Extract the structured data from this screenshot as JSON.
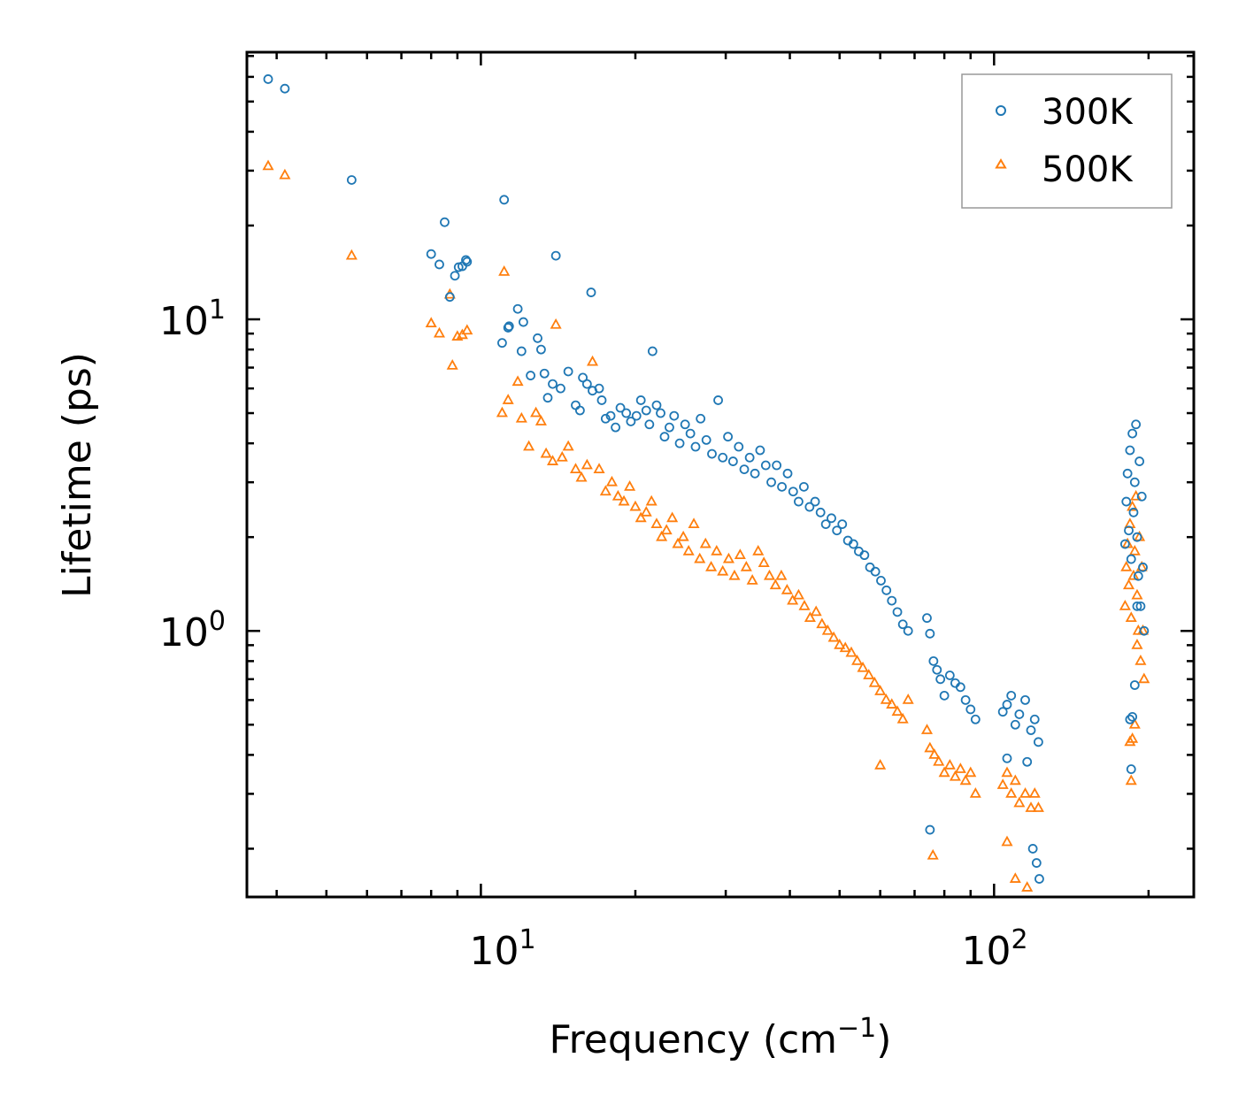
{
  "chart_data": {
    "type": "scatter",
    "xscale": "log",
    "yscale": "log",
    "xlim": [
      3.5,
      245
    ],
    "ylim": [
      0.14,
      72
    ],
    "x_major_ticks": [
      10,
      100
    ],
    "y_major_ticks": [
      1,
      10
    ],
    "x_tick_labels": [
      {
        "base": "10",
        "exp": "1"
      },
      {
        "base": "10",
        "exp": "2"
      }
    ],
    "y_tick_labels": [
      {
        "base": "10",
        "exp": "0"
      },
      {
        "base": "10",
        "exp": "1"
      }
    ],
    "xlabel": {
      "text": "Frequency (cm",
      "sup": "−1",
      "suffix": ")"
    },
    "ylabel": "Lifetime (ps)",
    "grid": false,
    "legend_position": "top-right",
    "series": [
      {
        "name": "300K",
        "marker": "circle",
        "color": "#1f77b4",
        "points": [
          [
            3.85,
            59
          ],
          [
            4.15,
            55
          ],
          [
            5.6,
            28
          ],
          [
            8.0,
            16.2
          ],
          [
            8.3,
            15
          ],
          [
            8.5,
            20.5
          ],
          [
            8.7,
            11.8
          ],
          [
            8.9,
            13.8
          ],
          [
            9.05,
            14.7
          ],
          [
            9.2,
            14.8
          ],
          [
            9.35,
            15.5
          ],
          [
            9.4,
            15.3
          ],
          [
            11.0,
            8.4
          ],
          [
            11.1,
            24.2
          ],
          [
            11.3,
            9.4
          ],
          [
            11.35,
            9.5
          ],
          [
            11.8,
            10.8
          ],
          [
            12.0,
            7.9
          ],
          [
            12.1,
            9.8
          ],
          [
            12.5,
            6.6
          ],
          [
            12.9,
            8.7
          ],
          [
            13.1,
            8.0
          ],
          [
            13.3,
            6.7
          ],
          [
            13.5,
            5.6
          ],
          [
            13.8,
            6.2
          ],
          [
            14.0,
            16.0
          ],
          [
            14.3,
            6.0
          ],
          [
            14.8,
            6.8
          ],
          [
            15.3,
            5.3
          ],
          [
            15.6,
            5.1
          ],
          [
            15.8,
            6.5
          ],
          [
            16.1,
            6.2
          ],
          [
            16.4,
            12.2
          ],
          [
            16.5,
            5.9
          ],
          [
            17.0,
            6.0
          ],
          [
            17.2,
            5.5
          ],
          [
            17.5,
            4.8
          ],
          [
            17.9,
            4.9
          ],
          [
            18.3,
            4.5
          ],
          [
            18.7,
            5.2
          ],
          [
            19.2,
            5.0
          ],
          [
            19.6,
            4.7
          ],
          [
            20.1,
            4.9
          ],
          [
            20.5,
            5.5
          ],
          [
            21.0,
            5.1
          ],
          [
            21.3,
            4.6
          ],
          [
            21.6,
            7.9
          ],
          [
            22.0,
            5.3
          ],
          [
            22.4,
            5.0
          ],
          [
            22.8,
            4.2
          ],
          [
            23.3,
            4.5
          ],
          [
            23.8,
            4.9
          ],
          [
            24.4,
            4.0
          ],
          [
            25.0,
            4.6
          ],
          [
            25.6,
            4.3
          ],
          [
            26.2,
            3.9
          ],
          [
            26.8,
            4.8
          ],
          [
            27.5,
            4.1
          ],
          [
            28.2,
            3.7
          ],
          [
            29.0,
            5.5
          ],
          [
            29.6,
            3.6
          ],
          [
            30.3,
            4.2
          ],
          [
            31.0,
            3.5
          ],
          [
            31.8,
            3.9
          ],
          [
            32.6,
            3.3
          ],
          [
            33.4,
            3.6
          ],
          [
            34.2,
            3.2
          ],
          [
            35.0,
            3.8
          ],
          [
            35.9,
            3.4
          ],
          [
            36.8,
            3.0
          ],
          [
            37.7,
            3.4
          ],
          [
            38.6,
            2.9
          ],
          [
            39.6,
            3.2
          ],
          [
            40.6,
            2.8
          ],
          [
            41.6,
            2.6
          ],
          [
            42.6,
            2.9
          ],
          [
            43.7,
            2.5
          ],
          [
            44.8,
            2.6
          ],
          [
            45.9,
            2.4
          ],
          [
            47.0,
            2.2
          ],
          [
            48.2,
            2.3
          ],
          [
            49.4,
            2.1
          ],
          [
            50.6,
            2.2
          ],
          [
            51.9,
            1.95
          ],
          [
            53.2,
            1.9
          ],
          [
            54.5,
            1.8
          ],
          [
            55.9,
            1.75
          ],
          [
            57.3,
            1.6
          ],
          [
            58.7,
            1.55
          ],
          [
            60.2,
            1.45
          ],
          [
            61.7,
            1.35
          ],
          [
            63.2,
            1.25
          ],
          [
            64.8,
            1.15
          ],
          [
            66.4,
            1.05
          ],
          [
            68.0,
            1.0
          ],
          [
            74.0,
            1.1
          ],
          [
            75.0,
            0.98
          ],
          [
            76.2,
            0.8
          ],
          [
            77.4,
            0.75
          ],
          [
            78.6,
            0.7
          ],
          [
            80.0,
            0.62
          ],
          [
            82.0,
            0.72
          ],
          [
            84.0,
            0.68
          ],
          [
            86.0,
            0.66
          ],
          [
            88.0,
            0.6
          ],
          [
            90.0,
            0.56
          ],
          [
            92.0,
            0.52
          ],
          [
            104.0,
            0.55
          ],
          [
            106.0,
            0.58
          ],
          [
            108.0,
            0.62
          ],
          [
            110.0,
            0.5
          ],
          [
            112.0,
            0.54
          ],
          [
            115.0,
            0.6
          ],
          [
            118.0,
            0.48
          ],
          [
            120.0,
            0.52
          ],
          [
            122.0,
            0.44
          ],
          [
            75.0,
            0.23
          ],
          [
            106.0,
            0.39
          ],
          [
            116.0,
            0.38
          ],
          [
            119.0,
            0.2
          ],
          [
            121.0,
            0.18
          ],
          [
            122.5,
            0.16
          ],
          [
            180.0,
            1.9
          ],
          [
            181.0,
            2.6
          ],
          [
            182.0,
            3.2
          ],
          [
            183.0,
            2.1
          ],
          [
            184.0,
            3.8
          ],
          [
            185.0,
            1.7
          ],
          [
            186.0,
            4.3
          ],
          [
            187.0,
            2.4
          ],
          [
            188.0,
            3.0
          ],
          [
            189.0,
            4.6
          ],
          [
            190.0,
            2.0
          ],
          [
            191.0,
            1.5
          ],
          [
            192.0,
            3.5
          ],
          [
            193.0,
            1.2
          ],
          [
            194.0,
            2.7
          ],
          [
            195.0,
            1.6
          ],
          [
            196.0,
            1.0
          ],
          [
            184.0,
            0.52
          ],
          [
            186.0,
            0.53
          ],
          [
            188.0,
            0.67
          ],
          [
            190.0,
            1.2
          ],
          [
            185.0,
            0.36
          ]
        ]
      },
      {
        "name": "500K",
        "marker": "triangle",
        "color": "#ff7f0e",
        "points": [
          [
            3.85,
            31
          ],
          [
            4.15,
            29
          ],
          [
            5.6,
            16
          ],
          [
            8.0,
            9.7
          ],
          [
            8.3,
            9.0
          ],
          [
            8.7,
            12.0
          ],
          [
            8.8,
            7.1
          ],
          [
            9.0,
            8.8
          ],
          [
            9.2,
            8.9
          ],
          [
            9.4,
            9.2
          ],
          [
            11.0,
            5.0
          ],
          [
            11.1,
            14.2
          ],
          [
            11.3,
            5.5
          ],
          [
            11.8,
            6.3
          ],
          [
            12.0,
            4.8
          ],
          [
            12.4,
            3.9
          ],
          [
            12.8,
            5.0
          ],
          [
            13.1,
            4.7
          ],
          [
            13.4,
            3.7
          ],
          [
            13.8,
            3.5
          ],
          [
            14.0,
            9.6
          ],
          [
            14.4,
            3.6
          ],
          [
            14.8,
            3.9
          ],
          [
            15.3,
            3.3
          ],
          [
            15.7,
            3.1
          ],
          [
            16.1,
            3.4
          ],
          [
            16.5,
            7.3
          ],
          [
            17.0,
            3.3
          ],
          [
            17.5,
            2.8
          ],
          [
            18.0,
            3.0
          ],
          [
            18.5,
            2.7
          ],
          [
            19.0,
            2.6
          ],
          [
            19.5,
            2.9
          ],
          [
            20.0,
            2.5
          ],
          [
            20.5,
            2.3
          ],
          [
            21.0,
            2.4
          ],
          [
            21.5,
            2.6
          ],
          [
            22.0,
            2.2
          ],
          [
            22.5,
            2.0
          ],
          [
            23.0,
            2.1
          ],
          [
            23.6,
            2.3
          ],
          [
            24.2,
            1.9
          ],
          [
            24.8,
            2.0
          ],
          [
            25.4,
            1.8
          ],
          [
            26.0,
            2.2
          ],
          [
            26.7,
            1.7
          ],
          [
            27.4,
            1.9
          ],
          [
            28.1,
            1.6
          ],
          [
            28.8,
            1.8
          ],
          [
            29.6,
            1.55
          ],
          [
            30.4,
            1.7
          ],
          [
            31.2,
            1.5
          ],
          [
            32.0,
            1.75
          ],
          [
            32.9,
            1.6
          ],
          [
            33.8,
            1.45
          ],
          [
            34.7,
            1.8
          ],
          [
            35.6,
            1.65
          ],
          [
            36.5,
            1.5
          ],
          [
            37.5,
            1.4
          ],
          [
            38.5,
            1.5
          ],
          [
            39.5,
            1.35
          ],
          [
            40.5,
            1.25
          ],
          [
            41.6,
            1.3
          ],
          [
            42.7,
            1.2
          ],
          [
            43.8,
            1.1
          ],
          [
            45.0,
            1.15
          ],
          [
            46.2,
            1.05
          ],
          [
            47.4,
            1.0
          ],
          [
            48.7,
            0.95
          ],
          [
            50.0,
            0.9
          ],
          [
            51.3,
            0.88
          ],
          [
            52.7,
            0.85
          ],
          [
            54.1,
            0.8
          ],
          [
            55.5,
            0.76
          ],
          [
            57.0,
            0.72
          ],
          [
            58.5,
            0.68
          ],
          [
            60.0,
            0.64
          ],
          [
            61.6,
            0.6
          ],
          [
            63.2,
            0.58
          ],
          [
            64.8,
            0.55
          ],
          [
            66.4,
            0.52
          ],
          [
            68.0,
            0.6
          ],
          [
            60.0,
            0.37
          ],
          [
            74.0,
            0.48
          ],
          [
            75.0,
            0.42
          ],
          [
            76.5,
            0.4
          ],
          [
            78.0,
            0.38
          ],
          [
            80.0,
            0.35
          ],
          [
            82.0,
            0.37
          ],
          [
            84.0,
            0.34
          ],
          [
            86.0,
            0.36
          ],
          [
            88.0,
            0.33
          ],
          [
            90.0,
            0.35
          ],
          [
            92.0,
            0.3
          ],
          [
            76.0,
            0.19
          ],
          [
            104.0,
            0.32
          ],
          [
            106.0,
            0.35
          ],
          [
            108.0,
            0.3
          ],
          [
            110.0,
            0.33
          ],
          [
            112.0,
            0.28
          ],
          [
            115.0,
            0.3
          ],
          [
            118.0,
            0.27
          ],
          [
            120.0,
            0.3
          ],
          [
            122.0,
            0.27
          ],
          [
            106.0,
            0.21
          ],
          [
            110.0,
            0.16
          ],
          [
            116.0,
            0.15
          ],
          [
            180.0,
            1.2
          ],
          [
            181.0,
            1.6
          ],
          [
            182.0,
            1.9
          ],
          [
            183.0,
            1.4
          ],
          [
            184.0,
            2.2
          ],
          [
            185.0,
            1.1
          ],
          [
            186.0,
            2.5
          ],
          [
            187.0,
            1.5
          ],
          [
            188.0,
            1.8
          ],
          [
            189.0,
            2.7
          ],
          [
            190.0,
            1.3
          ],
          [
            191.0,
            1.0
          ],
          [
            192.0,
            2.0
          ],
          [
            193.0,
            0.8
          ],
          [
            194.0,
            1.6
          ],
          [
            195.0,
            1.0
          ],
          [
            196.0,
            0.7
          ],
          [
            184.0,
            0.44
          ],
          [
            186.0,
            0.45
          ],
          [
            188.0,
            0.5
          ],
          [
            190.0,
            0.9
          ],
          [
            185.0,
            0.33
          ]
        ]
      }
    ]
  }
}
